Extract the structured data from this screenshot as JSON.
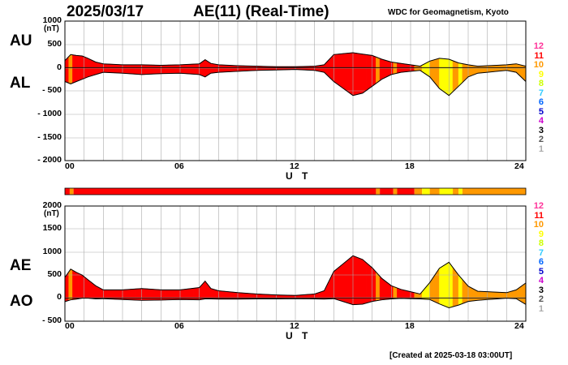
{
  "header": {
    "date": "2025/03/17",
    "title": "AE(11) (Real-Time)",
    "source": "WDC for Geomagnetism, Kyoto"
  },
  "footer": {
    "created": "[Created at 2025-03-18 03:00UT]"
  },
  "level_colors": {
    "12": "#ff3399",
    "11": "#ff0000",
    "10": "#ff9900",
    "9": "#ffff00",
    "8": "#ccff00",
    "7": "#33ccff",
    "6": "#0066ff",
    "5": "#0000cc",
    "4": "#cc00cc",
    "3": "#000000",
    "2": "#555555",
    "1": "#aaaaaa"
  },
  "chart_data": [
    {
      "type": "area",
      "panel": "AU/AL",
      "series": [
        {
          "name": "AU",
          "x": [
            0,
            0.3,
            0.6,
            0.9,
            1.2,
            1.6,
            2,
            3,
            4,
            5,
            6,
            7,
            7.3,
            7.6,
            8,
            9,
            10,
            11,
            12,
            13,
            13.5,
            14,
            14.5,
            15,
            15.5,
            16,
            16.5,
            17,
            17.5,
            18,
            18.5,
            19,
            19.5,
            20,
            20.5,
            21,
            21.5,
            22,
            22.5,
            23,
            23.5,
            24
          ],
          "values": [
            150,
            280,
            260,
            250,
            200,
            120,
            80,
            60,
            60,
            50,
            60,
            80,
            170,
            90,
            60,
            40,
            30,
            20,
            20,
            30,
            60,
            280,
            300,
            320,
            290,
            260,
            180,
            120,
            90,
            60,
            30,
            140,
            200,
            180,
            100,
            60,
            30,
            40,
            50,
            60,
            80,
            30
          ]
        },
        {
          "name": "AL",
          "x": [
            0,
            0.3,
            0.6,
            0.9,
            1.2,
            1.6,
            2,
            3,
            4,
            5,
            6,
            7,
            7.3,
            7.6,
            8,
            9,
            10,
            11,
            12,
            13,
            13.5,
            14,
            14.5,
            15,
            15.5,
            16,
            16.5,
            17,
            17.5,
            18,
            18.5,
            19,
            19.5,
            20,
            20.5,
            21,
            21.5,
            22,
            22.5,
            23,
            23.5,
            24
          ],
          "values": [
            -300,
            -350,
            -300,
            -250,
            -200,
            -150,
            -100,
            -120,
            -150,
            -130,
            -120,
            -150,
            -200,
            -120,
            -100,
            -80,
            -60,
            -50,
            -40,
            -60,
            -100,
            -300,
            -450,
            -600,
            -550,
            -400,
            -250,
            -150,
            -100,
            -80,
            -60,
            -200,
            -450,
            -600,
            -400,
            -200,
            -120,
            -100,
            -80,
            -60,
            -100,
            -300
          ]
        }
      ],
      "xlabel": "U T",
      "ylabel_unit": "(nT)",
      "ylim": [
        -2000,
        1000
      ],
      "yticks": [
        "1000",
        "500",
        "0",
        "- 500",
        "- 1000",
        "- 1500",
        "- 2000"
      ],
      "xticks": [
        "00",
        "06",
        "12",
        "18",
        "24"
      ],
      "side_labels": [
        "AU",
        "AL"
      ],
      "grid": true
    },
    {
      "type": "area",
      "panel": "AE/AO",
      "series": [
        {
          "name": "AE",
          "x": [
            0,
            0.3,
            0.6,
            0.9,
            1.2,
            1.6,
            2,
            3,
            4,
            5,
            6,
            7,
            7.3,
            7.6,
            8,
            9,
            10,
            11,
            12,
            13,
            13.5,
            14,
            14.5,
            15,
            15.5,
            16,
            16.5,
            17,
            17.5,
            18,
            18.5,
            19,
            19.5,
            20,
            20.5,
            21,
            21.5,
            22,
            22.5,
            23,
            23.5,
            24
          ],
          "values": [
            450,
            630,
            560,
            500,
            400,
            270,
            180,
            180,
            210,
            180,
            180,
            230,
            370,
            210,
            160,
            120,
            90,
            70,
            60,
            90,
            160,
            580,
            750,
            920,
            840,
            660,
            430,
            270,
            190,
            140,
            90,
            340,
            650,
            780,
            500,
            260,
            150,
            140,
            130,
            120,
            180,
            330
          ]
        },
        {
          "name": "AO",
          "x": [
            0,
            0.3,
            0.6,
            0.9,
            1.2,
            1.6,
            2,
            3,
            4,
            5,
            6,
            7,
            7.3,
            7.6,
            8,
            9,
            10,
            11,
            12,
            13,
            13.5,
            14,
            14.5,
            15,
            15.5,
            16,
            16.5,
            17,
            17.5,
            18,
            18.5,
            19,
            19.5,
            20,
            20.5,
            21,
            21.5,
            22,
            22.5,
            23,
            23.5,
            24
          ],
          "values": [
            -75,
            -35,
            -20,
            0,
            0,
            -15,
            -10,
            -30,
            -45,
            -40,
            -30,
            -35,
            -15,
            -15,
            -20,
            -20,
            -15,
            -15,
            -10,
            -15,
            -20,
            -10,
            -75,
            -140,
            -130,
            -70,
            -35,
            -15,
            -5,
            -10,
            -15,
            -30,
            -125,
            -210,
            -150,
            -70,
            -45,
            -30,
            -15,
            0,
            -10,
            -135
          ]
        }
      ],
      "xlabel": "U T",
      "ylabel_unit": "(nT)",
      "ylim": [
        -500,
        2000
      ],
      "yticks": [
        "2000",
        "1500",
        "1000",
        "500",
        "0",
        "- 500"
      ],
      "xticks": [
        "00",
        "06",
        "12",
        "18",
        "24"
      ],
      "side_labels": [
        "AE",
        "AO"
      ],
      "grid": true
    }
  ],
  "activity_bar": {
    "segments": [
      {
        "from": 0,
        "to": 0.25,
        "level": 11
      },
      {
        "from": 0.25,
        "to": 0.45,
        "level": 10
      },
      {
        "from": 0.45,
        "to": 16.2,
        "level": 11
      },
      {
        "from": 16.2,
        "to": 16.4,
        "level": 10
      },
      {
        "from": 16.4,
        "to": 17.1,
        "level": 11
      },
      {
        "from": 17.1,
        "to": 17.3,
        "level": 10
      },
      {
        "from": 17.3,
        "to": 18.2,
        "level": 11
      },
      {
        "from": 18.2,
        "to": 18.6,
        "level": 10
      },
      {
        "from": 18.6,
        "to": 19.0,
        "level": 9
      },
      {
        "from": 19.0,
        "to": 19.5,
        "level": 10
      },
      {
        "from": 19.5,
        "to": 20.2,
        "level": 9
      },
      {
        "from": 20.2,
        "to": 20.5,
        "level": 10
      },
      {
        "from": 20.5,
        "to": 20.7,
        "level": 9
      },
      {
        "from": 20.7,
        "to": 24,
        "level": 10
      }
    ]
  }
}
